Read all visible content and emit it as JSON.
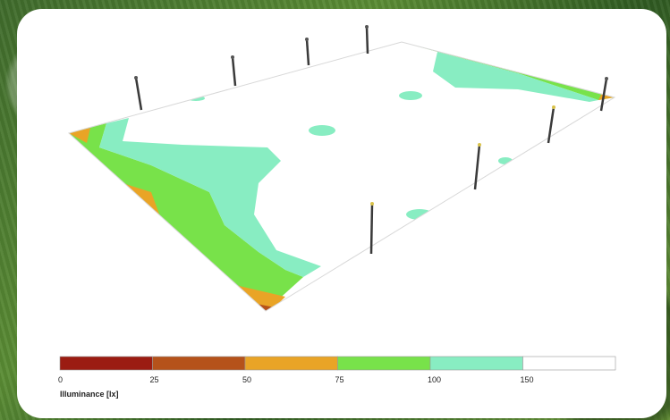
{
  "legend": {
    "title": "Illuminance [lx]",
    "ticks": [
      "0",
      "25",
      "50",
      "75",
      "100",
      "150"
    ],
    "bands": [
      {
        "from": 0,
        "to": 25,
        "color": "#9b1c12"
      },
      {
        "from": 25,
        "to": 50,
        "color": "#b5521a"
      },
      {
        "from": 50,
        "to": 75,
        "color": "#e9a426"
      },
      {
        "from": 75,
        "to": 100,
        "color": "#78e24a"
      },
      {
        "from": 100,
        "to": 150,
        "color": "#88edc2"
      },
      {
        "from": 150,
        "to": null,
        "color": "#ffffff"
      }
    ]
  },
  "poles": {
    "count": 8
  }
}
